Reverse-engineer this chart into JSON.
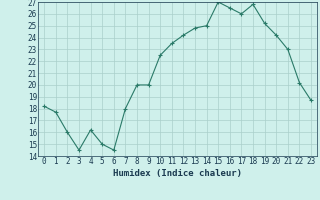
{
  "x": [
    0,
    1,
    2,
    3,
    4,
    5,
    6,
    7,
    8,
    9,
    10,
    11,
    12,
    13,
    14,
    15,
    16,
    17,
    18,
    19,
    20,
    21,
    22,
    23
  ],
  "y": [
    18.2,
    17.7,
    16.0,
    14.5,
    16.2,
    15.0,
    14.5,
    18.0,
    20.0,
    20.0,
    22.5,
    23.5,
    24.2,
    24.8,
    25.0,
    27.0,
    26.5,
    26.0,
    26.8,
    25.2,
    24.2,
    23.0,
    20.2,
    18.7
  ],
  "xlabel": "Humidex (Indice chaleur)",
  "ylim": [
    14,
    27
  ],
  "yticks": [
    14,
    15,
    16,
    17,
    18,
    19,
    20,
    21,
    22,
    23,
    24,
    25,
    26,
    27
  ],
  "xticks": [
    0,
    1,
    2,
    3,
    4,
    5,
    6,
    7,
    8,
    9,
    10,
    11,
    12,
    13,
    14,
    15,
    16,
    17,
    18,
    19,
    20,
    21,
    22,
    23
  ],
  "line_color": "#2a7a68",
  "marker": "+",
  "bg_color": "#cff0eb",
  "grid_color": "#aacfca",
  "tick_label_color": "#1a3a50",
  "axis_label_color": "#1a3a50",
  "font_size_tick": 5.5,
  "font_size_xlabel": 6.5
}
